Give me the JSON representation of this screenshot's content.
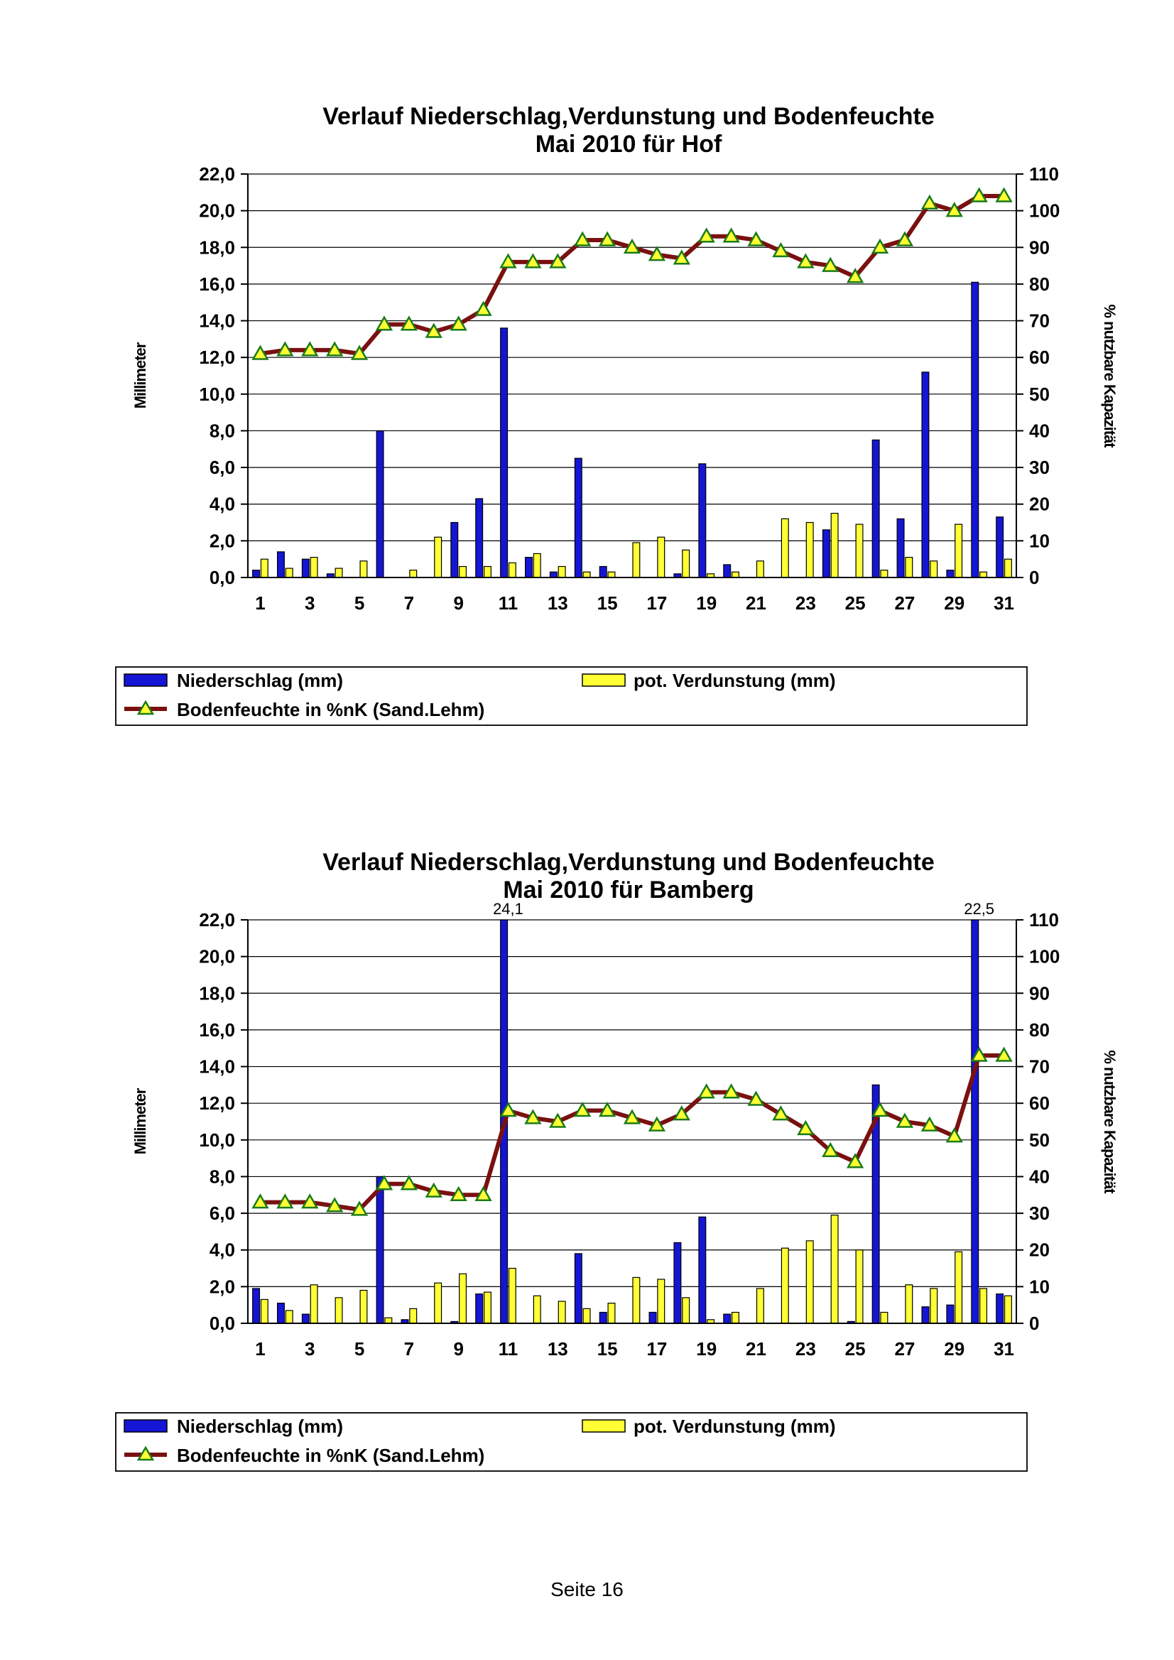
{
  "footer": {
    "page_label": "Seite 16"
  },
  "colors": {
    "precip": "#1515d6",
    "evap": "#ffff33",
    "soil_line": "#7a1010",
    "marker_fill": "#ffff33",
    "marker_edge": "#1a7a1a"
  },
  "chart_data": [
    {
      "type": "bar",
      "title": "Verlauf Niederschlag,Verdunstung und Bodenfeuchte",
      "subtitle": "Mai 2010 für Hof",
      "ylabel": "Millimeter",
      "y2label": "% nutzbare Kapazität",
      "ylim": [
        0,
        22
      ],
      "y2lim": [
        0,
        110
      ],
      "yticks": [
        "0,0",
        "2,0",
        "4,0",
        "6,0",
        "8,0",
        "10,0",
        "12,0",
        "14,0",
        "16,0",
        "18,0",
        "20,0",
        "22,0"
      ],
      "y2ticks": [
        "0",
        "10",
        "20",
        "30",
        "40",
        "50",
        "60",
        "70",
        "80",
        "90",
        "100",
        "110"
      ],
      "x": [
        1,
        2,
        3,
        4,
        5,
        6,
        7,
        8,
        9,
        10,
        11,
        12,
        13,
        14,
        15,
        16,
        17,
        18,
        19,
        20,
        21,
        22,
        23,
        24,
        25,
        26,
        27,
        28,
        29,
        30,
        31
      ],
      "xticks": [
        "1",
        "3",
        "5",
        "7",
        "9",
        "11",
        "13",
        "15",
        "17",
        "19",
        "21",
        "23",
        "25",
        "27",
        "29",
        "31"
      ],
      "grid": true,
      "legend_position": "bottom",
      "legend": [
        "Niederschlag (mm)",
        "pot. Verdunstung (mm)",
        "Bodenfeuchte in %nK (Sand.Lehm)"
      ],
      "overflow_labels": [],
      "series": [
        {
          "name": "Niederschlag (mm)",
          "type": "bar",
          "values": [
            0.4,
            1.4,
            1.0,
            0.2,
            0,
            8.0,
            0,
            0,
            3.0,
            4.3,
            13.6,
            1.1,
            0.3,
            6.5,
            0.6,
            0,
            0,
            0.2,
            6.2,
            0.7,
            0,
            0,
            0,
            2.6,
            0,
            7.5,
            3.2,
            11.2,
            0.4,
            16.1,
            3.3
          ]
        },
        {
          "name": "pot. Verdunstung (mm)",
          "type": "bar",
          "values": [
            1.0,
            0.5,
            1.1,
            0.5,
            0.9,
            0,
            0.4,
            2.2,
            0.6,
            0.6,
            0.8,
            1.3,
            0.6,
            0.3,
            0.3,
            1.9,
            2.2,
            1.5,
            0.2,
            0.3,
            0.9,
            3.2,
            3.0,
            3.5,
            2.9,
            0.4,
            1.1,
            0.9,
            2.9,
            0.3,
            1.0
          ]
        },
        {
          "name": "Bodenfeuchte in %nK (Sand.Lehm)",
          "type": "line",
          "axis": "right",
          "values": [
            61,
            62,
            62,
            62,
            61,
            69,
            69,
            67,
            69,
            73,
            86,
            86,
            86,
            92,
            92,
            90,
            88,
            87,
            93,
            93,
            92,
            89,
            86,
            85,
            82,
            90,
            92,
            102,
            100,
            104,
            104
          ]
        }
      ]
    },
    {
      "type": "bar",
      "title": "Verlauf Niederschlag,Verdunstung und Bodenfeuchte",
      "subtitle": "Mai 2010 für Bamberg",
      "ylabel": "Millimeter",
      "y2label": "% nutzbare Kapazität",
      "ylim": [
        0,
        22
      ],
      "y2lim": [
        0,
        110
      ],
      "yticks": [
        "0,0",
        "2,0",
        "4,0",
        "6,0",
        "8,0",
        "10,0",
        "12,0",
        "14,0",
        "16,0",
        "18,0",
        "20,0",
        "22,0"
      ],
      "y2ticks": [
        "0",
        "10",
        "20",
        "30",
        "40",
        "50",
        "60",
        "70",
        "80",
        "90",
        "100",
        "110"
      ],
      "x": [
        1,
        2,
        3,
        4,
        5,
        6,
        7,
        8,
        9,
        10,
        11,
        12,
        13,
        14,
        15,
        16,
        17,
        18,
        19,
        20,
        21,
        22,
        23,
        24,
        25,
        26,
        27,
        28,
        29,
        30,
        31
      ],
      "xticks": [
        "1",
        "3",
        "5",
        "7",
        "9",
        "11",
        "13",
        "15",
        "17",
        "19",
        "21",
        "23",
        "25",
        "27",
        "29",
        "31"
      ],
      "grid": true,
      "legend_position": "bottom",
      "legend": [
        "Niederschlag (mm)",
        "pot. Verdunstung (mm)",
        "Bodenfeuchte in %nK (Sand.Lehm)"
      ],
      "overflow_labels": [
        {
          "x": 11,
          "text": "24,1"
        },
        {
          "x": 30,
          "text": "22,5"
        }
      ],
      "series": [
        {
          "name": "Niederschlag (mm)",
          "type": "bar",
          "values": [
            1.9,
            1.1,
            0.5,
            0,
            0,
            8.0,
            0.2,
            0,
            0.1,
            1.6,
            24.1,
            0,
            0,
            3.8,
            0.6,
            0,
            0.6,
            4.4,
            5.8,
            0.5,
            0,
            0,
            0,
            0,
            0.1,
            13.0,
            0,
            0.9,
            1.0,
            22.5,
            1.6
          ]
        },
        {
          "name": "pot. Verdunstung (mm)",
          "type": "bar",
          "values": [
            1.3,
            0.7,
            2.1,
            1.4,
            1.8,
            0.3,
            0.8,
            2.2,
            2.7,
            1.7,
            3.0,
            1.5,
            1.2,
            0.8,
            1.1,
            2.5,
            2.4,
            1.4,
            0.2,
            0.6,
            1.9,
            4.1,
            4.5,
            5.9,
            4.0,
            0.6,
            2.1,
            1.9,
            3.9,
            1.9,
            1.5
          ]
        },
        {
          "name": "Bodenfeuchte in %nK (Sand.Lehm)",
          "type": "line",
          "axis": "right",
          "values": [
            33,
            33,
            33,
            32,
            31,
            38,
            38,
            36,
            35,
            35,
            58,
            56,
            55,
            58,
            58,
            56,
            54,
            57,
            63,
            63,
            61,
            57,
            53,
            47,
            44,
            58,
            55,
            54,
            51,
            73,
            73
          ]
        }
      ]
    }
  ]
}
